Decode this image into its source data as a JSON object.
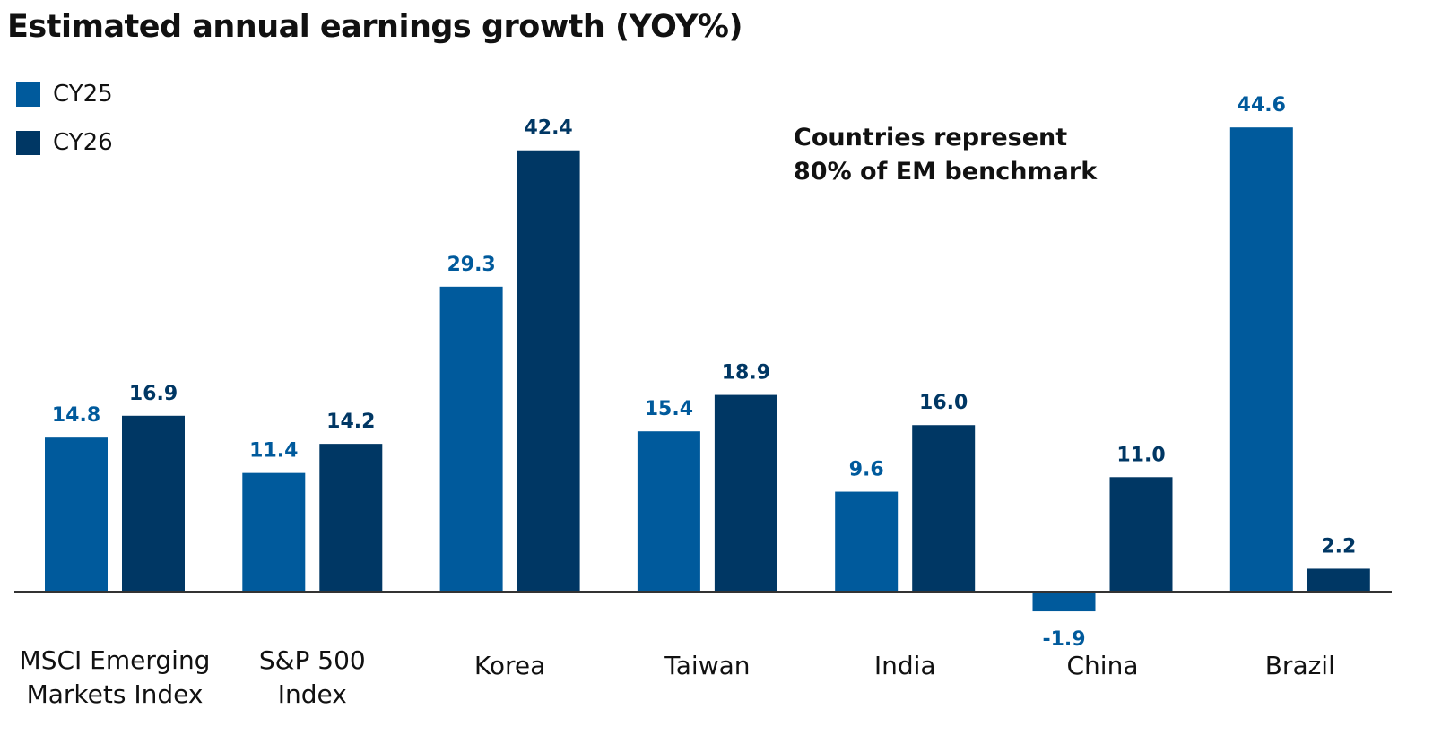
{
  "chart_data": {
    "type": "bar",
    "title": "Estimated annual earnings growth (YOY%)",
    "annotation": [
      "Countries represent",
      "80% of EM benchmark"
    ],
    "legend_placement": "top-left",
    "grid": false,
    "categories": [
      [
        "MSCI Emerging",
        "Markets Index"
      ],
      [
        "S&P 500",
        "Index"
      ],
      [
        "Korea"
      ],
      [
        "Taiwan"
      ],
      [
        "India"
      ],
      [
        "China"
      ],
      [
        "Brazil"
      ]
    ],
    "series": [
      {
        "name": "CY25",
        "color": "#005A9C",
        "values": [
          14.8,
          11.4,
          29.3,
          15.4,
          9.6,
          -1.9,
          44.6
        ]
      },
      {
        "name": "CY26",
        "color": "#003764",
        "values": [
          16.9,
          14.2,
          42.4,
          18.9,
          16.0,
          11.0,
          2.2
        ]
      }
    ]
  }
}
